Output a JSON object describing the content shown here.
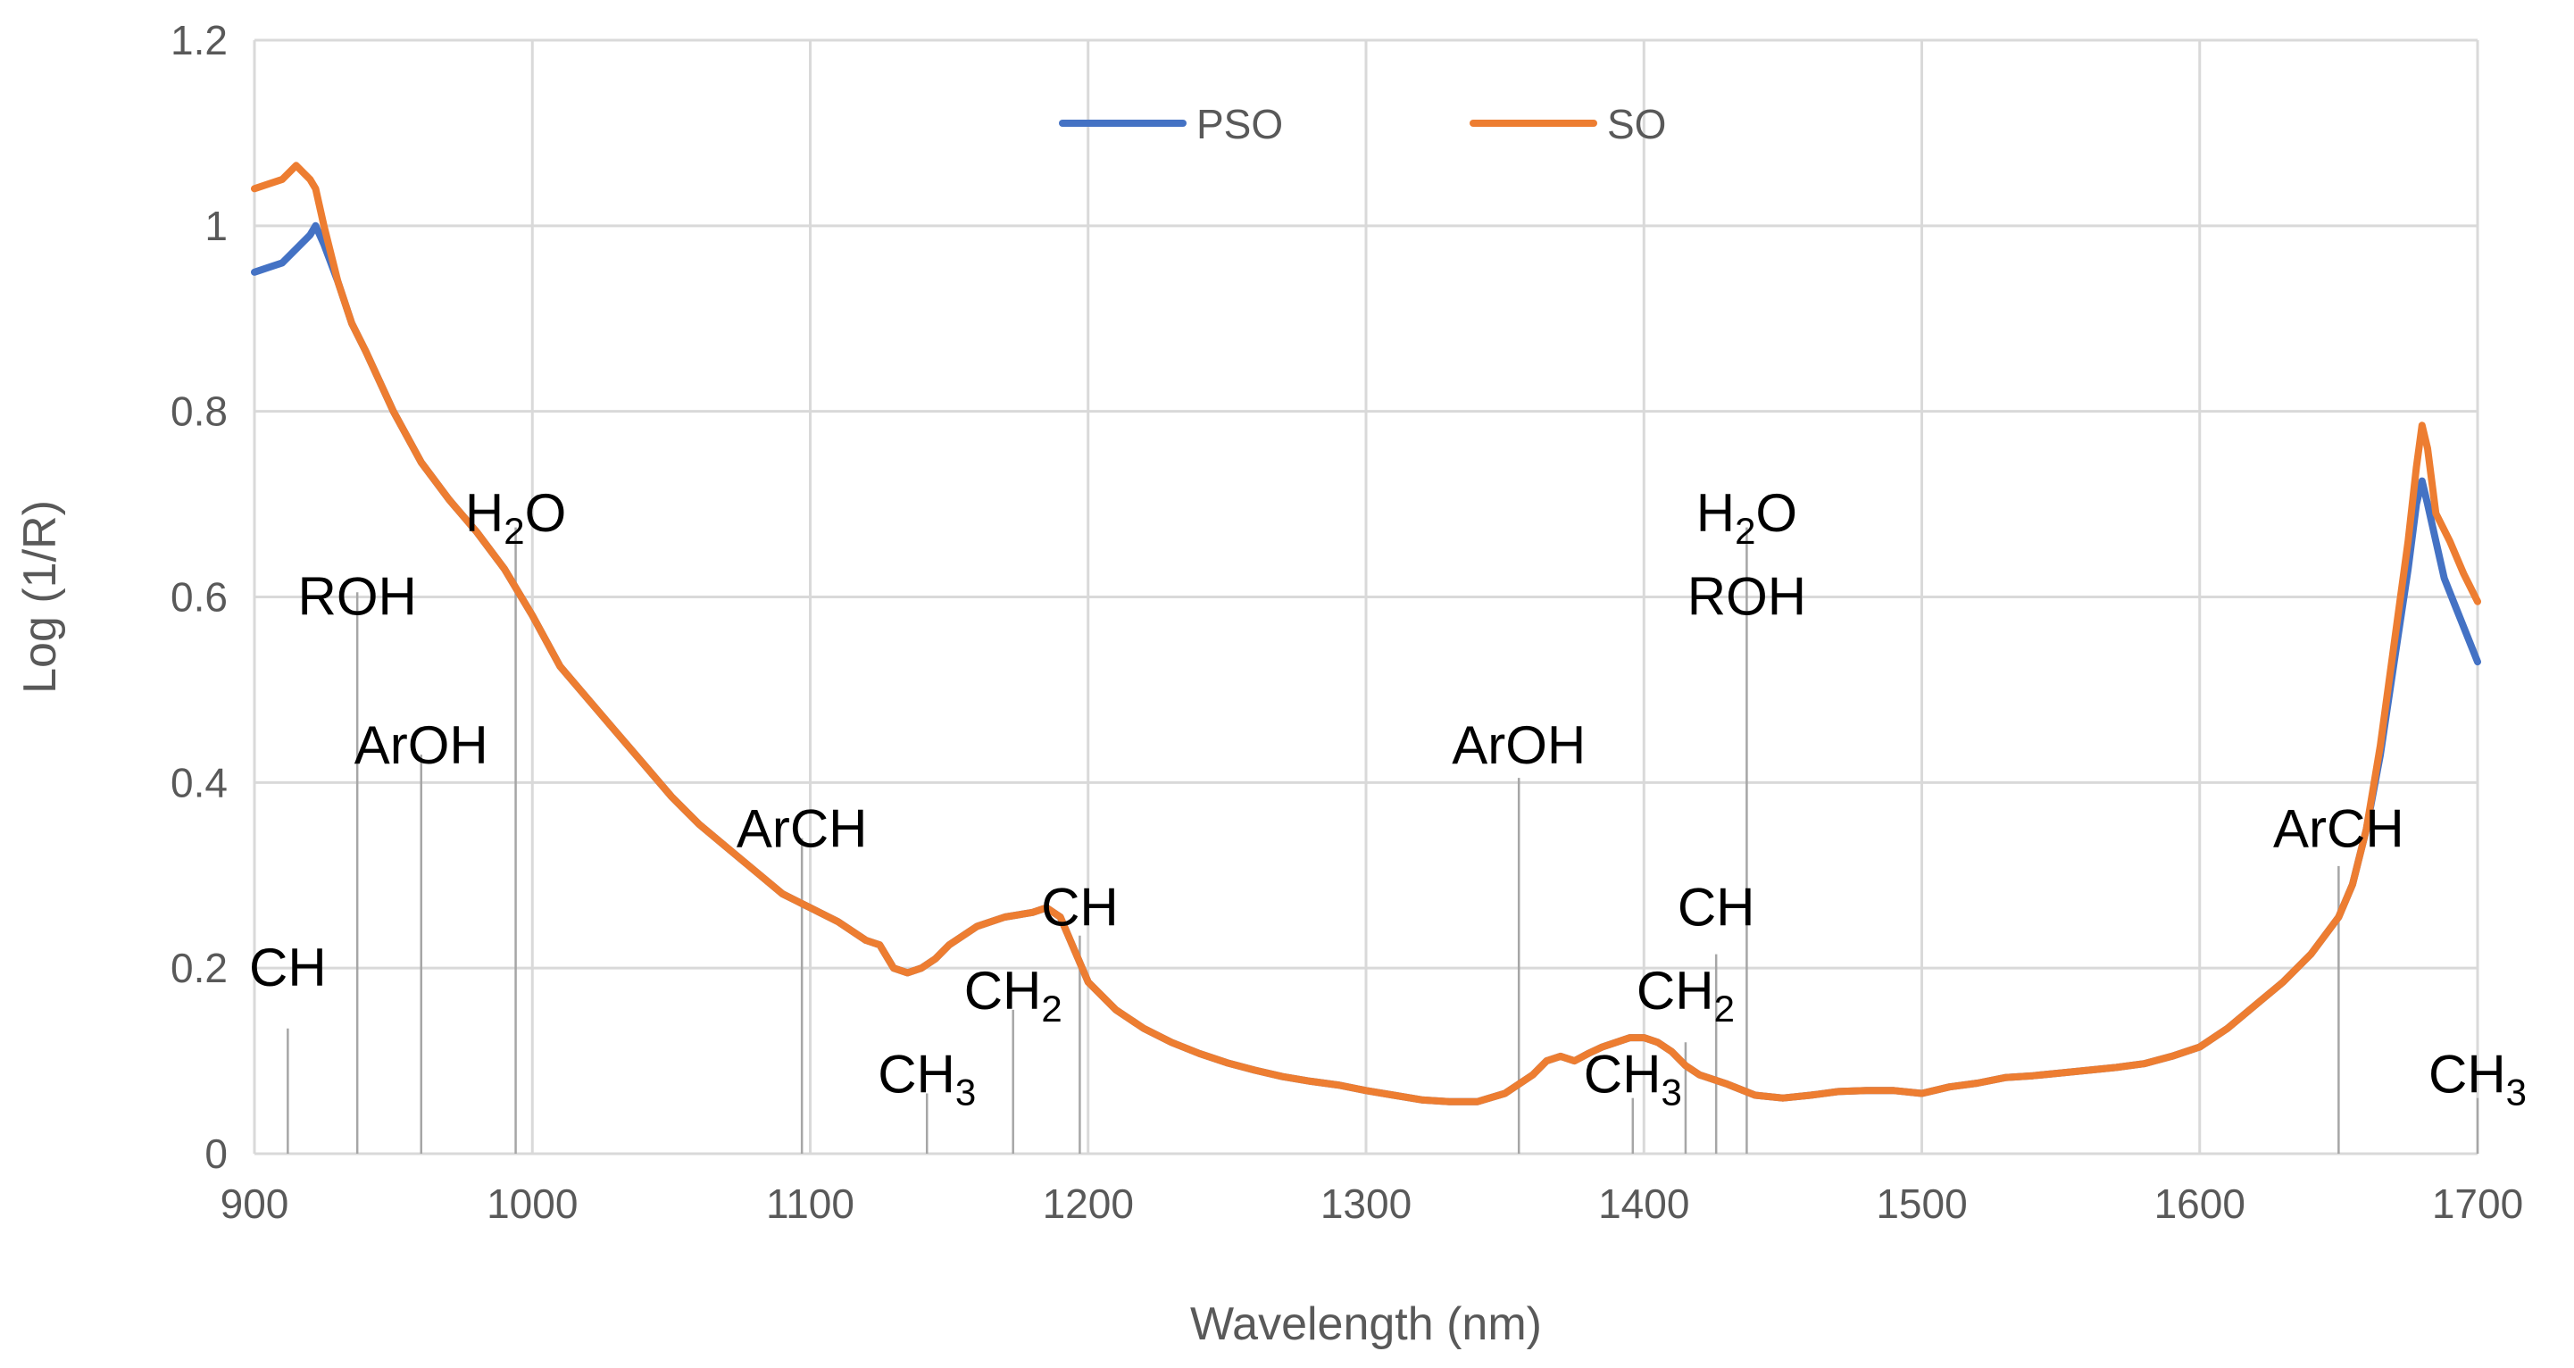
{
  "chart_data": {
    "type": "line",
    "title": "",
    "xlabel": "Wavelength (nm)",
    "ylabel": "Log (1/R)",
    "xlim": [
      900,
      1700
    ],
    "ylim": [
      0,
      1.2
    ],
    "x_ticks": [
      900,
      1000,
      1100,
      1200,
      1300,
      1400,
      1500,
      1600,
      1700
    ],
    "x_tick_labels": [
      "900",
      "1000",
      "1100",
      "1200",
      "1300",
      "1400",
      "1500",
      "1600",
      "1700"
    ],
    "y_ticks": [
      0,
      0.2,
      0.4,
      0.6,
      0.8,
      1.0,
      1.2
    ],
    "y_tick_labels": [
      "0",
      "0.2",
      "0.4",
      "0.6",
      "0.8",
      "1",
      "1.2"
    ],
    "grid": true,
    "legend": {
      "position": "top-center",
      "entries": [
        "PSO",
        "SO"
      ]
    },
    "series": [
      {
        "name": "PSO",
        "color": "#4472C4",
        "points": [
          [
            900,
            0.95
          ],
          [
            905,
            0.955
          ],
          [
            910,
            0.96
          ],
          [
            915,
            0.975
          ],
          [
            920,
            0.99
          ],
          [
            922,
            1.0
          ],
          [
            925,
            0.98
          ],
          [
            930,
            0.94
          ],
          [
            935,
            0.895
          ],
          [
            940,
            0.865
          ],
          [
            950,
            0.8
          ],
          [
            960,
            0.745
          ],
          [
            970,
            0.705
          ],
          [
            980,
            0.67
          ],
          [
            990,
            0.63
          ],
          [
            1000,
            0.58
          ],
          [
            1010,
            0.525
          ],
          [
            1020,
            0.49
          ],
          [
            1030,
            0.455
          ],
          [
            1040,
            0.42
          ],
          [
            1050,
            0.385
          ],
          [
            1060,
            0.355
          ],
          [
            1070,
            0.33
          ],
          [
            1080,
            0.305
          ],
          [
            1090,
            0.28
          ],
          [
            1100,
            0.265
          ],
          [
            1110,
            0.25
          ],
          [
            1120,
            0.23
          ],
          [
            1125,
            0.225
          ],
          [
            1130,
            0.2
          ],
          [
            1135,
            0.195
          ],
          [
            1140,
            0.2
          ],
          [
            1145,
            0.21
          ],
          [
            1150,
            0.225
          ],
          [
            1160,
            0.245
          ],
          [
            1170,
            0.255
          ],
          [
            1180,
            0.26
          ],
          [
            1185,
            0.265
          ],
          [
            1190,
            0.255
          ],
          [
            1195,
            0.22
          ],
          [
            1200,
            0.185
          ],
          [
            1210,
            0.155
          ],
          [
            1220,
            0.135
          ],
          [
            1230,
            0.12
          ],
          [
            1240,
            0.108
          ],
          [
            1250,
            0.098
          ],
          [
            1260,
            0.09
          ],
          [
            1270,
            0.083
          ],
          [
            1280,
            0.078
          ],
          [
            1290,
            0.074
          ],
          [
            1300,
            0.068
          ],
          [
            1310,
            0.063
          ],
          [
            1320,
            0.058
          ],
          [
            1330,
            0.056
          ],
          [
            1340,
            0.056
          ],
          [
            1350,
            0.065
          ],
          [
            1360,
            0.085
          ],
          [
            1365,
            0.1
          ],
          [
            1370,
            0.105
          ],
          [
            1375,
            0.1
          ],
          [
            1380,
            0.108
          ],
          [
            1385,
            0.115
          ],
          [
            1390,
            0.12
          ],
          [
            1395,
            0.125
          ],
          [
            1400,
            0.125
          ],
          [
            1405,
            0.12
          ],
          [
            1410,
            0.11
          ],
          [
            1415,
            0.095
          ],
          [
            1420,
            0.085
          ],
          [
            1430,
            0.075
          ],
          [
            1440,
            0.063
          ],
          [
            1450,
            0.06
          ],
          [
            1460,
            0.063
          ],
          [
            1470,
            0.067
          ],
          [
            1480,
            0.068
          ],
          [
            1490,
            0.068
          ],
          [
            1500,
            0.065
          ],
          [
            1510,
            0.072
          ],
          [
            1520,
            0.076
          ],
          [
            1530,
            0.082
          ],
          [
            1540,
            0.084
          ],
          [
            1550,
            0.087
          ],
          [
            1560,
            0.09
          ],
          [
            1570,
            0.093
          ],
          [
            1580,
            0.097
          ],
          [
            1590,
            0.105
          ],
          [
            1600,
            0.115
          ],
          [
            1610,
            0.135
          ],
          [
            1620,
            0.16
          ],
          [
            1630,
            0.185
          ],
          [
            1640,
            0.215
          ],
          [
            1650,
            0.255
          ],
          [
            1655,
            0.29
          ],
          [
            1660,
            0.35
          ],
          [
            1665,
            0.43
          ],
          [
            1670,
            0.53
          ],
          [
            1675,
            0.63
          ],
          [
            1678,
            0.7
          ],
          [
            1680,
            0.725
          ],
          [
            1682,
            0.7
          ],
          [
            1685,
            0.66
          ],
          [
            1688,
            0.62
          ],
          [
            1692,
            0.59
          ],
          [
            1696,
            0.56
          ],
          [
            1700,
            0.53
          ]
        ]
      },
      {
        "name": "SO",
        "color": "#ED7D31",
        "points": [
          [
            900,
            1.04
          ],
          [
            905,
            1.045
          ],
          [
            910,
            1.05
          ],
          [
            915,
            1.065
          ],
          [
            920,
            1.05
          ],
          [
            922,
            1.04
          ],
          [
            925,
            1.0
          ],
          [
            930,
            0.94
          ],
          [
            935,
            0.895
          ],
          [
            940,
            0.865
          ],
          [
            950,
            0.8
          ],
          [
            960,
            0.745
          ],
          [
            970,
            0.705
          ],
          [
            980,
            0.67
          ],
          [
            990,
            0.63
          ],
          [
            1000,
            0.58
          ],
          [
            1010,
            0.525
          ],
          [
            1020,
            0.49
          ],
          [
            1030,
            0.455
          ],
          [
            1040,
            0.42
          ],
          [
            1050,
            0.385
          ],
          [
            1060,
            0.355
          ],
          [
            1070,
            0.33
          ],
          [
            1080,
            0.305
          ],
          [
            1090,
            0.28
          ],
          [
            1100,
            0.265
          ],
          [
            1110,
            0.25
          ],
          [
            1120,
            0.23
          ],
          [
            1125,
            0.225
          ],
          [
            1130,
            0.2
          ],
          [
            1135,
            0.195
          ],
          [
            1140,
            0.2
          ],
          [
            1145,
            0.21
          ],
          [
            1150,
            0.225
          ],
          [
            1160,
            0.245
          ],
          [
            1170,
            0.255
          ],
          [
            1180,
            0.26
          ],
          [
            1185,
            0.265
          ],
          [
            1190,
            0.255
          ],
          [
            1195,
            0.22
          ],
          [
            1200,
            0.185
          ],
          [
            1210,
            0.155
          ],
          [
            1220,
            0.135
          ],
          [
            1230,
            0.12
          ],
          [
            1240,
            0.108
          ],
          [
            1250,
            0.098
          ],
          [
            1260,
            0.09
          ],
          [
            1270,
            0.083
          ],
          [
            1280,
            0.078
          ],
          [
            1290,
            0.074
          ],
          [
            1300,
            0.068
          ],
          [
            1310,
            0.063
          ],
          [
            1320,
            0.058
          ],
          [
            1330,
            0.056
          ],
          [
            1340,
            0.056
          ],
          [
            1350,
            0.065
          ],
          [
            1360,
            0.085
          ],
          [
            1365,
            0.1
          ],
          [
            1370,
            0.105
          ],
          [
            1375,
            0.1
          ],
          [
            1380,
            0.108
          ],
          [
            1385,
            0.115
          ],
          [
            1390,
            0.12
          ],
          [
            1395,
            0.125
          ],
          [
            1400,
            0.125
          ],
          [
            1405,
            0.12
          ],
          [
            1410,
            0.11
          ],
          [
            1415,
            0.095
          ],
          [
            1420,
            0.085
          ],
          [
            1430,
            0.075
          ],
          [
            1440,
            0.063
          ],
          [
            1450,
            0.06
          ],
          [
            1460,
            0.063
          ],
          [
            1470,
            0.067
          ],
          [
            1480,
            0.068
          ],
          [
            1490,
            0.068
          ],
          [
            1500,
            0.065
          ],
          [
            1510,
            0.072
          ],
          [
            1520,
            0.076
          ],
          [
            1530,
            0.082
          ],
          [
            1540,
            0.084
          ],
          [
            1550,
            0.087
          ],
          [
            1560,
            0.09
          ],
          [
            1570,
            0.093
          ],
          [
            1580,
            0.097
          ],
          [
            1590,
            0.105
          ],
          [
            1600,
            0.115
          ],
          [
            1610,
            0.135
          ],
          [
            1620,
            0.16
          ],
          [
            1630,
            0.185
          ],
          [
            1640,
            0.215
          ],
          [
            1650,
            0.255
          ],
          [
            1655,
            0.29
          ],
          [
            1660,
            0.35
          ],
          [
            1665,
            0.44
          ],
          [
            1670,
            0.55
          ],
          [
            1675,
            0.66
          ],
          [
            1678,
            0.74
          ],
          [
            1680,
            0.785
          ],
          [
            1682,
            0.76
          ],
          [
            1685,
            0.69
          ],
          [
            1690,
            0.66
          ],
          [
            1695,
            0.625
          ],
          [
            1700,
            0.595
          ]
        ]
      }
    ],
    "annotations": [
      {
        "name": "CH",
        "label": "CH",
        "sub": "",
        "x": 912,
        "y": 0.2,
        "line_top": 0.135
      },
      {
        "name": "ROH",
        "label": "ROH",
        "sub": "",
        "x": 937,
        "y": 0.6,
        "line_top": 0.605
      },
      {
        "name": "ArOH",
        "label": "ArOH",
        "sub": "",
        "x": 960,
        "y": 0.44,
        "line_top": 0.43
      },
      {
        "name": "H2O",
        "label": "H",
        "sub": "2",
        "post": "O",
        "x": 994,
        "y": 0.69,
        "line_top": 0.675
      },
      {
        "name": "ArCH",
        "label": "ArCH",
        "sub": "",
        "x": 1097,
        "y": 0.35,
        "line_top": 0.34
      },
      {
        "name": "CH3",
        "label": "CH",
        "sub": "3",
        "x": 1142,
        "y": 0.085,
        "line_top": 0.065
      },
      {
        "name": "CH2",
        "label": "CH",
        "sub": "2",
        "x": 1173,
        "y": 0.175,
        "line_top": 0.155
      },
      {
        "name": "CH",
        "label": "CH",
        "sub": "",
        "x": 1197,
        "y": 0.265,
        "line_top": 0.235
      },
      {
        "name": "ArOH",
        "label": "ArOH",
        "sub": "",
        "x": 1355,
        "y": 0.44,
        "line_top": 0.405
      },
      {
        "name": "CH3",
        "label": "CH",
        "sub": "3",
        "x": 1396,
        "y": 0.085,
        "line_top": 0.06
      },
      {
        "name": "CH2",
        "label": "CH",
        "sub": "2",
        "x": 1415,
        "y": 0.175,
        "line_top": 0.12
      },
      {
        "name": "CH",
        "label": "CH",
        "sub": "",
        "x": 1426,
        "y": 0.265,
        "line_top": 0.215
      },
      {
        "name": "H2O",
        "label": "H",
        "sub": "2",
        "post": "O",
        "x": 1437,
        "y": 0.69,
        "line_top": 0.675
      },
      {
        "name": "ROH",
        "label": "ROH",
        "sub": "",
        "x": 1437,
        "y": 0.6,
        "line_top": null
      },
      {
        "name": "ArCH",
        "label": "ArCH",
        "sub": "",
        "x": 1650,
        "y": 0.35,
        "line_top": 0.31
      },
      {
        "name": "CH3",
        "label": "CH",
        "sub": "3",
        "x": 1700,
        "y": 0.085,
        "line_top": 0.06
      }
    ]
  }
}
